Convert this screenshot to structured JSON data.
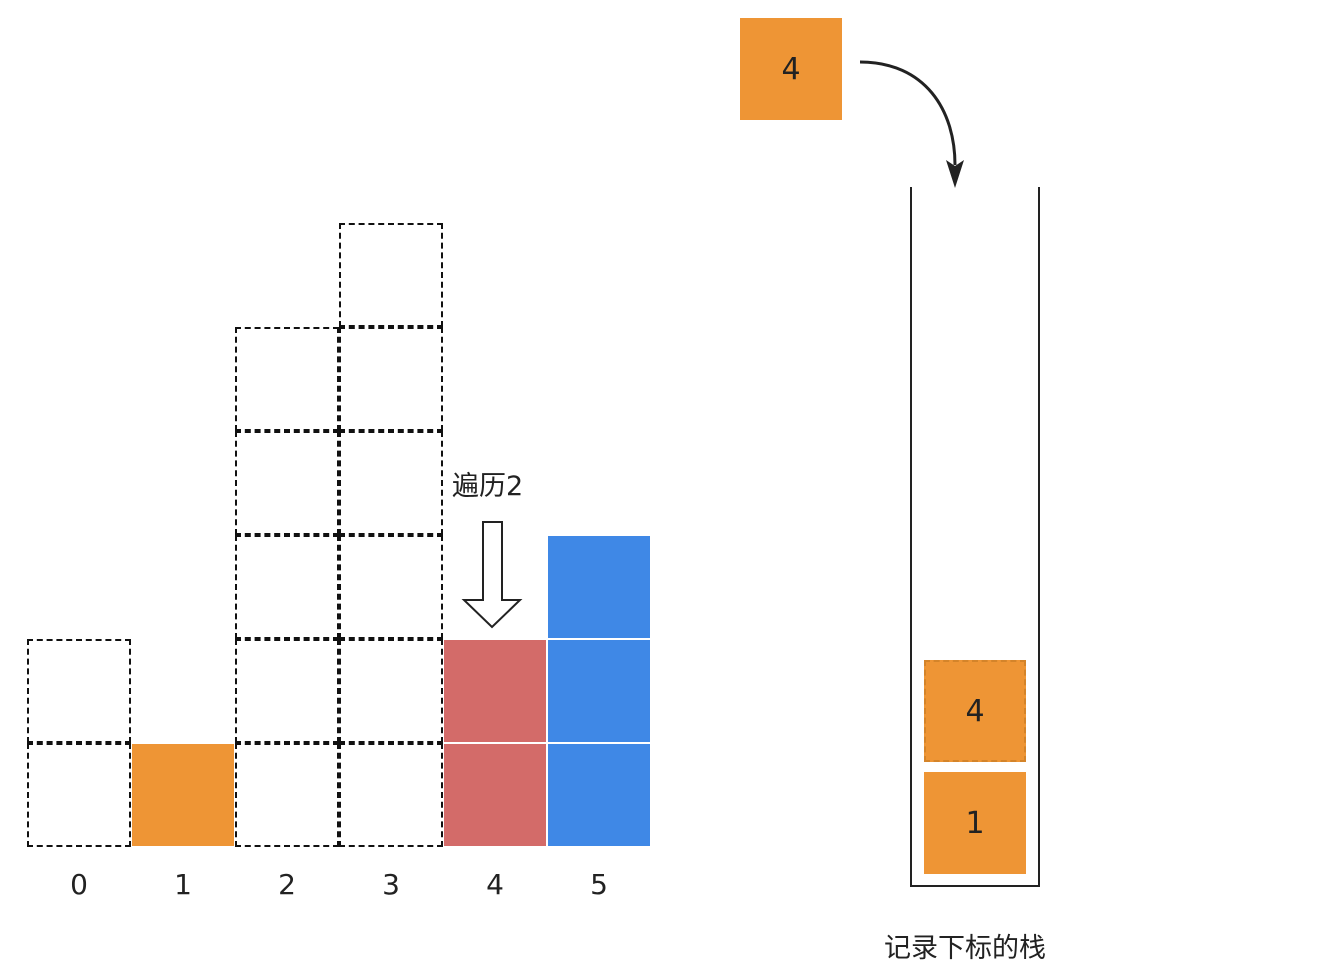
{
  "diagram": {
    "bars": [
      {
        "index_label": "0",
        "height": 2,
        "style": "dashed"
      },
      {
        "index_label": "1",
        "height": 1,
        "style": "orange"
      },
      {
        "index_label": "2",
        "height": 5,
        "style": "dashed"
      },
      {
        "index_label": "3",
        "height": 6,
        "style": "dashed"
      },
      {
        "index_label": "4",
        "height": 2,
        "style": "red"
      },
      {
        "index_label": "5",
        "height": 3,
        "style": "blue"
      }
    ],
    "traverse_label": "遍历2",
    "incoming_item": "4",
    "stack_items": [
      {
        "value": "1",
        "style": "solid"
      },
      {
        "value": "4",
        "style": "dashed"
      }
    ],
    "stack_caption": "记录下标的栈",
    "colors": {
      "orange": "#ee9535",
      "red": "#d36b69",
      "blue": "#3f88e6",
      "outline": "#111111"
    }
  }
}
